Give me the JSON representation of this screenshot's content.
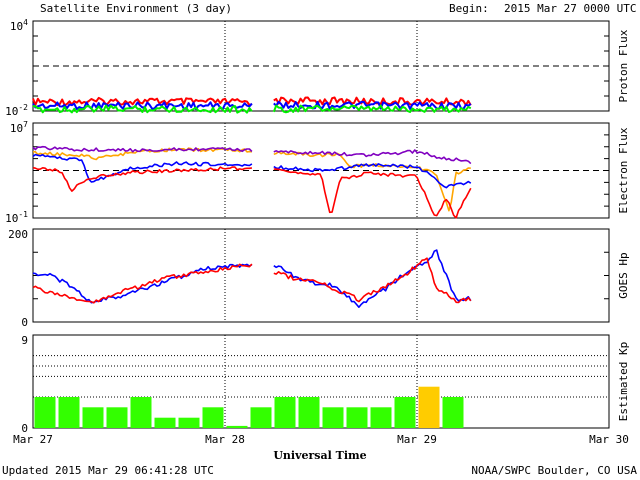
{
  "header": {
    "title": "Satellite Environment (3 day)",
    "begin_label": "Begin:",
    "begin_value": "2015 Mar 27 0000 UTC"
  },
  "footer": {
    "updated": "Updated 2015 Mar 29 06:41:28 UTC",
    "credit": "NOAA/SWPC Boulder, CO USA",
    "xlabel": "Universal Time"
  },
  "colors": {
    "red": "#ff0000",
    "blue": "#0000ff",
    "green": "#00ee00",
    "orange": "#ffa500",
    "purple": "#8000c0",
    "kp_green": "#33ff00",
    "kp_yellow": "#ffcc00"
  },
  "chart_data": [
    {
      "type": "line",
      "panel": "proton",
      "ylabel": "Proton Flux",
      "yscale": "log",
      "ylim": [
        0.01,
        10000
      ],
      "y_ticks": [
        {
          "base": "10",
          "exp": "4"
        },
        {
          "base": "10",
          "exp": "-2"
        }
      ],
      "threshold": 10,
      "gap": [
        1.15,
        1.25
      ],
      "series": [
        {
          "color": "red",
          "x": [
            0,
            0.5,
            1.0,
            1.15,
            1.25,
            1.75,
            2.28
          ],
          "y": [
            0.04,
            0.045,
            0.04,
            0.04,
            0.05,
            0.045,
            0.04
          ]
        },
        {
          "color": "blue",
          "x": [
            0,
            0.5,
            1.0,
            1.15,
            1.25,
            1.75,
            2.28
          ],
          "y": [
            0.022,
            0.024,
            0.022,
            0.022,
            0.025,
            0.024,
            0.022
          ]
        },
        {
          "color": "green",
          "x": [
            0,
            0.5,
            1.0,
            1.15,
            1.25,
            1.75,
            2.28
          ],
          "y": [
            0.013,
            0.014,
            0.013,
            0.013,
            0.014,
            0.014,
            0.013
          ]
        }
      ]
    },
    {
      "type": "line",
      "panel": "electron",
      "ylabel": "Electron Flux",
      "yscale": "log",
      "ylim": [
        0.1,
        10000000
      ],
      "y_ticks": [
        {
          "base": "10",
          "exp": "7"
        },
        {
          "base": "10",
          "exp": "-1"
        }
      ],
      "threshold": 1000,
      "gap": [
        1.15,
        1.25
      ],
      "series": [
        {
          "color": "orange",
          "x": [
            0,
            0.25,
            0.33,
            0.5,
            0.75,
            1.0,
            1.15,
            1.25,
            1.5,
            1.6,
            1.65,
            1.75,
            2.0,
            2.1,
            2.17,
            2.2,
            2.28
          ],
          "y": [
            30000,
            20000,
            10000,
            30000,
            60000,
            50000,
            50000,
            30000,
            20000,
            25000,
            2000,
            3000,
            2000,
            500,
            0.3,
            500,
            2000
          ]
        },
        {
          "color": "purple",
          "x": [
            0,
            0.25,
            0.5,
            0.75,
            1.0,
            1.15,
            1.25,
            1.5,
            1.75,
            2.0,
            2.1,
            2.28
          ],
          "y": [
            80000,
            60000,
            50000,
            60000,
            60000,
            50000,
            40000,
            30000,
            20000,
            40000,
            15000,
            5000
          ]
        },
        {
          "color": "blue",
          "x": [
            0,
            0.25,
            0.3,
            0.5,
            0.75,
            1.0,
            1.15,
            1.25,
            1.5,
            1.6,
            1.75,
            2.0,
            2.1,
            2.15,
            2.28
          ],
          "y": [
            20000,
            8000,
            100,
            1500,
            4000,
            3000,
            3000,
            2000,
            1000,
            1500,
            3000,
            2000,
            200,
            40,
            100
          ]
        },
        {
          "color": "red",
          "x": [
            0,
            0.15,
            0.2,
            0.25,
            0.33,
            0.5,
            0.75,
            1.0,
            1.15,
            1.25,
            1.5,
            1.55,
            1.6,
            1.75,
            2.0,
            2.1,
            2.15,
            2.2,
            2.28
          ],
          "y": [
            2000,
            800,
            20,
            100,
            300,
            700,
            1000,
            1500,
            1500,
            1000,
            500,
            0.1,
            200,
            600,
            300,
            0.1,
            5,
            0.1,
            40
          ]
        }
      ]
    },
    {
      "type": "line",
      "panel": "goes_hp",
      "ylabel": "GOES Hp",
      "yscale": "linear",
      "ylim": [
        0,
        200
      ],
      "y_ticks": [
        "200",
        "0"
      ],
      "gap": [
        1.15,
        1.25
      ],
      "series": [
        {
          "color": "blue",
          "x": [
            0,
            0.1,
            0.2,
            0.3,
            0.5,
            0.7,
            0.9,
            1.15,
            1.25,
            1.35,
            1.45,
            1.55,
            1.7,
            1.85,
            1.95,
            2.05,
            2.1,
            2.2,
            2.28
          ],
          "y": [
            105,
            100,
            75,
            42,
            60,
            88,
            115,
            125,
            125,
            100,
            85,
            80,
            35,
            75,
            110,
            130,
            155,
            50,
            50
          ]
        },
        {
          "color": "red",
          "x": [
            0,
            0.1,
            0.2,
            0.3,
            0.5,
            0.7,
            0.9,
            1.15,
            1.25,
            1.35,
            1.45,
            1.55,
            1.7,
            1.85,
            1.95,
            2.05,
            2.1,
            2.2,
            2.28
          ],
          "y": [
            75,
            60,
            55,
            42,
            70,
            95,
            108,
            125,
            110,
            95,
            90,
            75,
            48,
            80,
            105,
            140,
            75,
            45,
            50
          ]
        }
      ]
    },
    {
      "type": "bar",
      "panel": "kp",
      "ylabel": "Estimated Kp",
      "ylim": [
        0,
        9
      ],
      "y_ticks": [
        "9",
        "0"
      ],
      "categories": [
        "0",
        "3",
        "6",
        "9",
        "12",
        "15",
        "18",
        "21",
        "24",
        "27",
        "30",
        "33",
        "36",
        "39",
        "42",
        "45",
        "48",
        "51",
        "54",
        "57",
        "60",
        "63",
        "66",
        "69"
      ],
      "values": [
        3,
        3,
        2,
        2,
        3,
        1,
        1,
        2,
        0.2,
        2,
        3,
        3,
        2,
        2,
        2,
        3,
        4,
        3,
        0,
        0,
        0,
        0,
        0,
        0
      ],
      "bar_colors": [
        "kp_green",
        "kp_green",
        "kp_green",
        "kp_green",
        "kp_green",
        "kp_green",
        "kp_green",
        "kp_green",
        "kp_green",
        "kp_green",
        "kp_green",
        "kp_green",
        "kp_green",
        "kp_green",
        "kp_green",
        "kp_green",
        "kp_yellow",
        "kp_green",
        "kp_green",
        "kp_green",
        "kp_green",
        "kp_green",
        "kp_green",
        "kp_green"
      ]
    }
  ],
  "x_axis": {
    "ticks": [
      "Mar 27",
      "Mar 28",
      "Mar 29",
      "Mar 30"
    ],
    "tick_days": [
      0,
      1,
      2,
      3
    ],
    "range_days": [
      0,
      3
    ]
  }
}
